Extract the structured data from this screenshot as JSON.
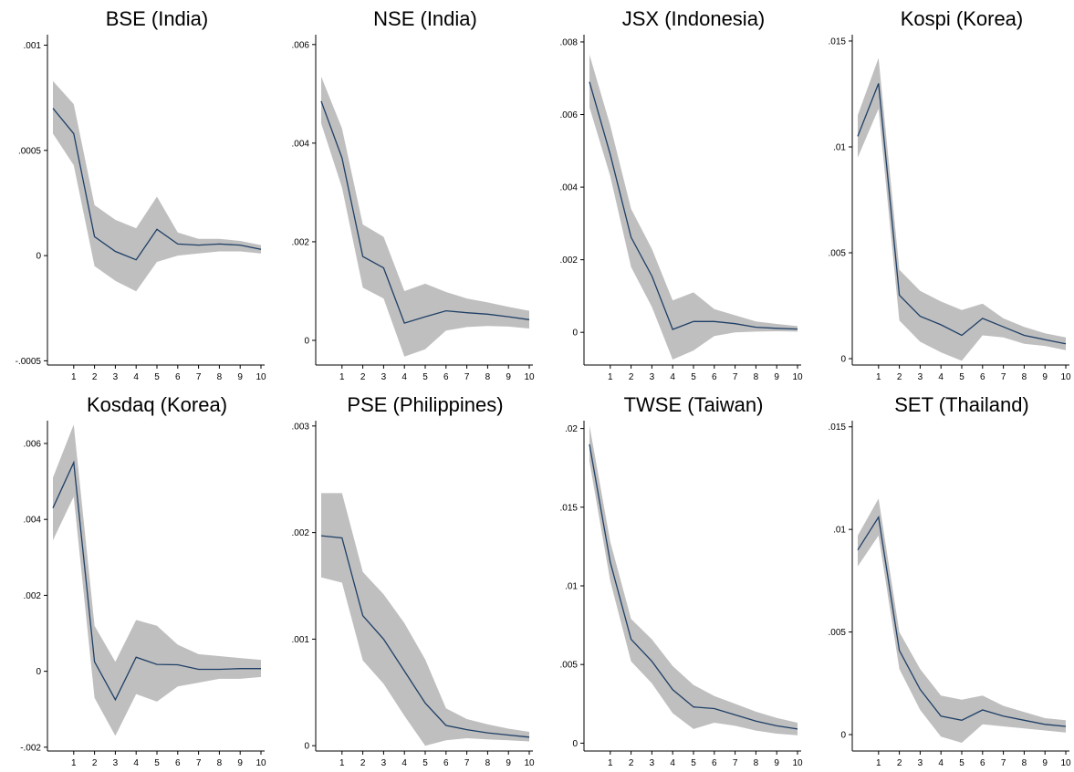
{
  "colors": {
    "band": "#bfbfbf",
    "line": "#1f3f66",
    "axis": "#000000"
  },
  "chart_data": [
    {
      "type": "area",
      "title": "BSE (India)",
      "x": [
        0,
        1,
        2,
        3,
        4,
        5,
        6,
        7,
        8,
        9,
        10
      ],
      "xticks": [
        1,
        2,
        3,
        4,
        5,
        6,
        7,
        8,
        9,
        10
      ],
      "ylim": [
        -0.00052,
        0.00105
      ],
      "yticks": [
        {
          "v": 0.001,
          "label": ".001"
        },
        {
          "v": 0.0005,
          "label": ".0005"
        },
        {
          "v": 0,
          "label": "0"
        },
        {
          "v": -0.0005,
          "label": "-.0005"
        }
      ],
      "series": [
        {
          "values": [
            0.0007,
            0.00058,
            9e-05,
            2e-05,
            -2e-05,
            0.000125,
            5.5e-05,
            5e-05,
            5.5e-05,
            5e-05,
            3e-05
          ]
        },
        {
          "values": [
            0.00083,
            0.00072,
            0.00024,
            0.00017,
            0.00013,
            0.00028,
            0.00011,
            8e-05,
            8e-05,
            7e-05,
            5e-05
          ]
        },
        {
          "values": [
            0.00058,
            0.00043,
            -5e-05,
            -0.00012,
            -0.00017,
            -3e-05,
            0.0,
            1e-05,
            2e-05,
            2e-05,
            1e-05
          ]
        }
      ]
    },
    {
      "type": "area",
      "title": "NSE (India)",
      "x": [
        0,
        1,
        2,
        3,
        4,
        5,
        6,
        7,
        8,
        9,
        10
      ],
      "xticks": [
        1,
        2,
        3,
        4,
        5,
        6,
        7,
        8,
        9,
        10
      ],
      "ylim": [
        -0.0005,
        0.0062
      ],
      "yticks": [
        {
          "v": 0.006,
          "label": ".006"
        },
        {
          "v": 0.004,
          "label": ".004"
        },
        {
          "v": 0.002,
          "label": ".002"
        },
        {
          "v": 0,
          "label": "0"
        }
      ],
      "series": [
        {
          "values": [
            0.00485,
            0.0037,
            0.0017,
            0.00147,
            0.00035,
            0.00048,
            0.0006,
            0.00056,
            0.00053,
            0.00048,
            0.00042
          ]
        },
        {
          "values": [
            0.00535,
            0.0043,
            0.00235,
            0.0021,
            0.001,
            0.00115,
            0.00098,
            0.00085,
            0.00077,
            0.00068,
            0.0006
          ]
        },
        {
          "values": [
            0.0044,
            0.0031,
            0.00107,
            0.00085,
            -0.00033,
            -0.00018,
            0.0002,
            0.00027,
            0.00029,
            0.00028,
            0.00024
          ]
        }
      ]
    },
    {
      "type": "area",
      "title": "JSX (Indonesia)",
      "x": [
        0,
        1,
        2,
        3,
        4,
        5,
        6,
        7,
        8,
        9,
        10
      ],
      "xticks": [
        1,
        2,
        3,
        4,
        5,
        6,
        7,
        8,
        9,
        10
      ],
      "ylim": [
        -0.0009,
        0.0082
      ],
      "yticks": [
        {
          "v": 0.008,
          "label": ".008"
        },
        {
          "v": 0.006,
          "label": ".006"
        },
        {
          "v": 0.004,
          "label": ".004"
        },
        {
          "v": 0.002,
          "label": ".002"
        },
        {
          "v": 0,
          "label": "0"
        }
      ],
      "series": [
        {
          "values": [
            0.0069,
            0.0049,
            0.00262,
            0.00155,
            8e-05,
            0.0003,
            0.0003,
            0.00024,
            0.00014,
            0.00011,
            9e-05
          ]
        },
        {
          "values": [
            0.00765,
            0.0057,
            0.0034,
            0.0023,
            0.00088,
            0.0011,
            0.00064,
            0.00047,
            0.0003,
            0.00023,
            0.00017
          ]
        },
        {
          "values": [
            0.0062,
            0.0043,
            0.0018,
            0.0007,
            -0.00075,
            -0.0005,
            -0.0001,
            0.0,
            2e-05,
            3e-05,
            2e-05
          ]
        }
      ]
    },
    {
      "type": "area",
      "title": "Kospi (Korea)",
      "x": [
        0,
        1,
        2,
        3,
        4,
        5,
        6,
        7,
        8,
        9,
        10
      ],
      "xticks": [
        1,
        2,
        3,
        4,
        5,
        6,
        7,
        8,
        9,
        10
      ],
      "ylim": [
        -0.0003,
        0.0153
      ],
      "yticks": [
        {
          "v": 0.015,
          "label": ".015"
        },
        {
          "v": 0.01,
          "label": ".01"
        },
        {
          "v": 0.005,
          "label": ".005"
        },
        {
          "v": 0,
          "label": "0"
        }
      ],
      "series": [
        {
          "values": [
            0.0105,
            0.013,
            0.003,
            0.002,
            0.0016,
            0.0011,
            0.0019,
            0.0015,
            0.0011,
            0.0009,
            0.0007
          ]
        },
        {
          "values": [
            0.0115,
            0.0142,
            0.0042,
            0.0032,
            0.0027,
            0.0023,
            0.0026,
            0.0019,
            0.0015,
            0.0012,
            0.001
          ]
        },
        {
          "values": [
            0.0095,
            0.0118,
            0.0018,
            0.0008,
            0.0003,
            -0.0001,
            0.0011,
            0.001,
            0.0007,
            0.0006,
            0.0004
          ]
        }
      ]
    },
    {
      "type": "area",
      "title": "Kosdaq (Korea)",
      "x": [
        0,
        1,
        2,
        3,
        4,
        5,
        6,
        7,
        8,
        9,
        10
      ],
      "xticks": [
        1,
        2,
        3,
        4,
        5,
        6,
        7,
        8,
        9,
        10
      ],
      "ylim": [
        -0.0021,
        0.0066
      ],
      "yticks": [
        {
          "v": 0.006,
          "label": ".006"
        },
        {
          "v": 0.004,
          "label": ".004"
        },
        {
          "v": 0.002,
          "label": ".002"
        },
        {
          "v": 0,
          "label": "0"
        },
        {
          "v": -0.002,
          "label": "-.002"
        }
      ],
      "series": [
        {
          "values": [
            0.0043,
            0.0055,
            0.00025,
            -0.00075,
            0.00037,
            0.00018,
            0.00017,
            5e-05,
            5e-05,
            7e-05,
            7e-05
          ]
        },
        {
          "values": [
            0.0051,
            0.0065,
            0.0012,
            0.00025,
            0.00135,
            0.0012,
            0.0007,
            0.00045,
            0.0004,
            0.00035,
            0.0003
          ]
        },
        {
          "values": [
            0.00345,
            0.0046,
            -0.0007,
            -0.0017,
            -0.0006,
            -0.0008,
            -0.0004,
            -0.0003,
            -0.0002,
            -0.0002,
            -0.00015
          ]
        }
      ]
    },
    {
      "type": "area",
      "title": "PSE (Philippines)",
      "x": [
        0,
        1,
        2,
        3,
        4,
        5,
        6,
        7,
        8,
        9,
        10
      ],
      "xticks": [
        1,
        2,
        3,
        4,
        5,
        6,
        7,
        8,
        9,
        10
      ],
      "ylim": [
        -5e-05,
        0.00305
      ],
      "yticks": [
        {
          "v": 0.003,
          "label": ".003"
        },
        {
          "v": 0.002,
          "label": ".002"
        },
        {
          "v": 0.001,
          "label": ".001"
        },
        {
          "v": 0,
          "label": "0"
        }
      ],
      "series": [
        {
          "values": [
            0.00197,
            0.00195,
            0.00122,
            0.001,
            0.0007,
            0.0004,
            0.00019,
            0.00015,
            0.00012,
            0.0001,
            8e-05
          ]
        },
        {
          "values": [
            0.00237,
            0.00237,
            0.00163,
            0.00142,
            0.00115,
            0.00081,
            0.00035,
            0.00025,
            0.0002,
            0.00016,
            0.00013
          ]
        },
        {
          "values": [
            0.00158,
            0.00153,
            0.0008,
            0.00058,
            0.00028,
            0.0,
            5e-05,
            7e-05,
            6e-05,
            5e-05,
            4e-05
          ]
        }
      ]
    },
    {
      "type": "area",
      "title": "TWSE (Taiwan)",
      "x": [
        0,
        1,
        2,
        3,
        4,
        5,
        6,
        7,
        8,
        9,
        10
      ],
      "xticks": [
        1,
        2,
        3,
        4,
        5,
        6,
        7,
        8,
        9,
        10
      ],
      "ylim": [
        -0.0005,
        0.0205
      ],
      "yticks": [
        {
          "v": 0.02,
          "label": ".02"
        },
        {
          "v": 0.015,
          "label": ".015"
        },
        {
          "v": 0.01,
          "label": ".01"
        },
        {
          "v": 0.005,
          "label": ".005"
        },
        {
          "v": 0,
          "label": "0"
        }
      ],
      "series": [
        {
          "values": [
            0.019,
            0.0115,
            0.0066,
            0.0052,
            0.0034,
            0.0023,
            0.0022,
            0.0018,
            0.0014,
            0.0011,
            0.0009
          ]
        },
        {
          "values": [
            0.0202,
            0.0128,
            0.0079,
            0.0066,
            0.0049,
            0.0037,
            0.003,
            0.0025,
            0.002,
            0.0016,
            0.0013
          ]
        },
        {
          "values": [
            0.0179,
            0.0103,
            0.0052,
            0.0038,
            0.0019,
            0.0009,
            0.0013,
            0.0011,
            0.0008,
            0.0006,
            0.0005
          ]
        }
      ]
    },
    {
      "type": "area",
      "title": "SET (Thailand)",
      "x": [
        0,
        1,
        2,
        3,
        4,
        5,
        6,
        7,
        8,
        9,
        10
      ],
      "xticks": [
        1,
        2,
        3,
        4,
        5,
        6,
        7,
        8,
        9,
        10
      ],
      "ylim": [
        -0.0008,
        0.0153
      ],
      "yticks": [
        {
          "v": 0.015,
          "label": ".015"
        },
        {
          "v": 0.01,
          "label": ".01"
        },
        {
          "v": 0.005,
          "label": ".005"
        },
        {
          "v": 0,
          "label": "0"
        }
      ],
      "series": [
        {
          "values": [
            0.009,
            0.0106,
            0.0041,
            0.0022,
            0.0009,
            0.0007,
            0.0012,
            0.0009,
            0.0007,
            0.0005,
            0.0004
          ]
        },
        {
          "values": [
            0.0097,
            0.0115,
            0.005,
            0.0032,
            0.0019,
            0.0017,
            0.0019,
            0.0014,
            0.0011,
            0.0008,
            0.0007
          ]
        },
        {
          "values": [
            0.0082,
            0.0097,
            0.0032,
            0.0012,
            -0.0001,
            -0.0004,
            0.0005,
            0.0004,
            0.0003,
            0.0002,
            0.0001
          ]
        }
      ]
    }
  ]
}
